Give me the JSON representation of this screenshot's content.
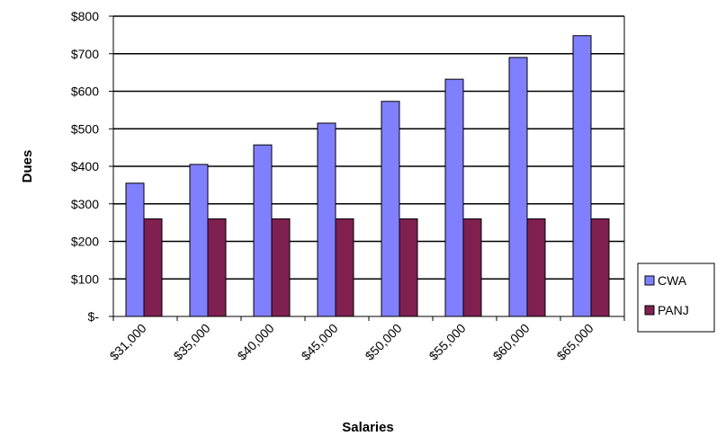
{
  "chart_data": {
    "type": "bar",
    "title": "",
    "xlabel": "Salaries",
    "ylabel": "Dues",
    "categories": [
      "$31,000",
      "$35,000",
      "$40,000",
      "$45,000",
      "$50,000",
      "$55,000",
      "$60,000",
      "$65,000"
    ],
    "series": [
      {
        "name": "CWA",
        "values": [
          355,
          405,
          457,
          515,
          573,
          632,
          690,
          748
        ],
        "color": "#8080FF"
      },
      {
        "name": "PANJ",
        "values": [
          260,
          260,
          260,
          260,
          260,
          260,
          260,
          260
        ],
        "color": "#7F2050"
      }
    ],
    "ylim": [
      0,
      800
    ],
    "yticks": [
      0,
      100,
      200,
      300,
      400,
      500,
      600,
      700,
      800
    ],
    "ytick_labels": [
      "$-",
      "$100",
      "$200",
      "$300",
      "$400",
      "$500",
      "$600",
      "$700",
      "$800"
    ],
    "grid": true,
    "legend_position": "right"
  }
}
